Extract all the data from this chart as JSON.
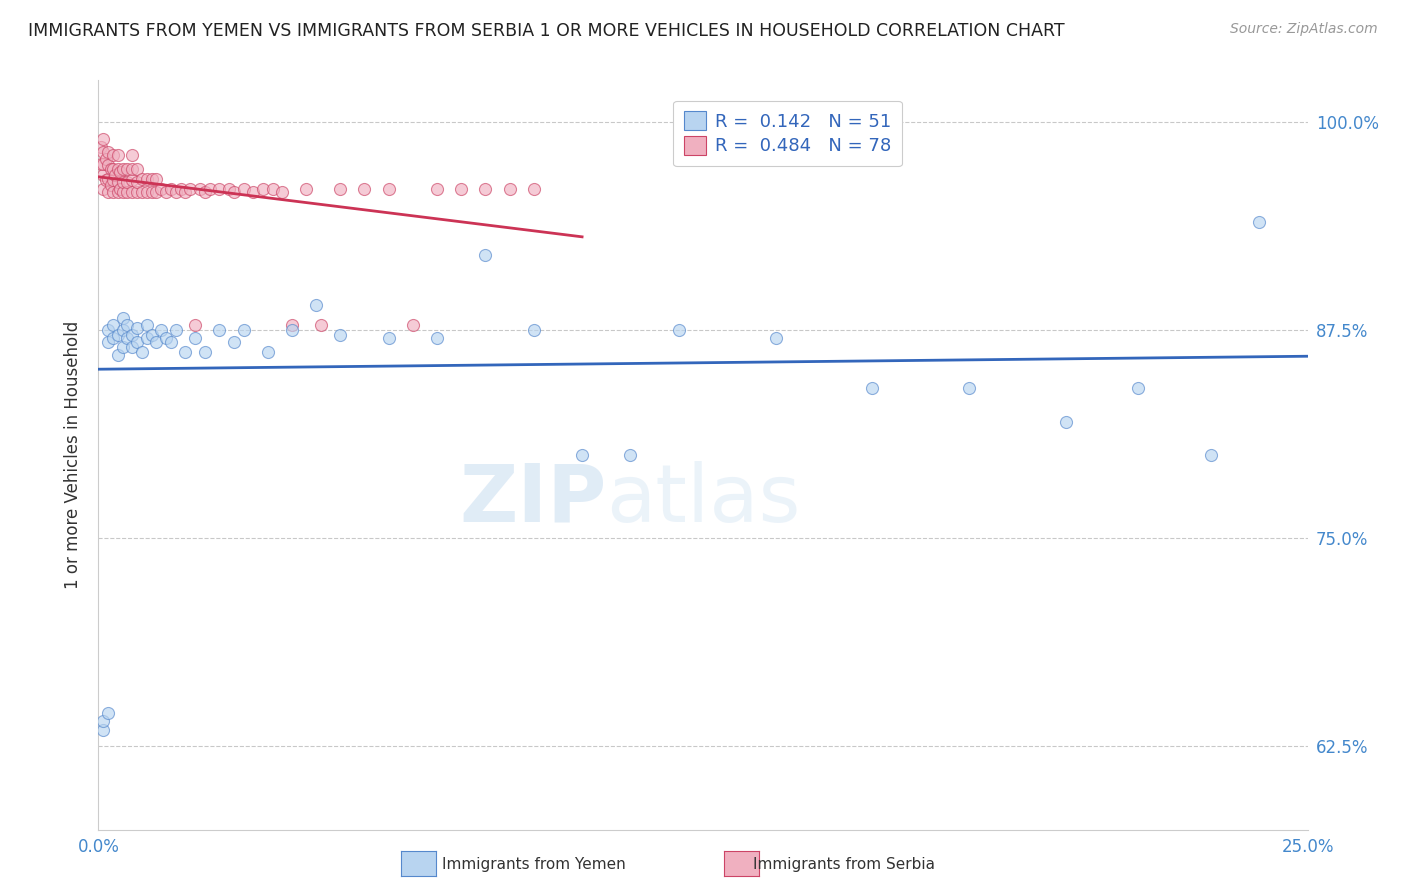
{
  "title": "IMMIGRANTS FROM YEMEN VS IMMIGRANTS FROM SERBIA 1 OR MORE VEHICLES IN HOUSEHOLD CORRELATION CHART",
  "source": "Source: ZipAtlas.com",
  "ylabel": "1 or more Vehicles in Household",
  "xlim": [
    0.0,
    0.25
  ],
  "ylim": [
    0.575,
    1.025
  ],
  "ytick_positions": [
    0.625,
    0.75,
    0.875,
    1.0
  ],
  "ytick_labels": [
    "62.5%",
    "75.0%",
    "87.5%",
    "100.0%"
  ],
  "xtick_positions": [
    0.0,
    0.05,
    0.1,
    0.15,
    0.2,
    0.25
  ],
  "xtick_labels": [
    "0.0%",
    "",
    "",
    "",
    "",
    "25.0%"
  ],
  "color_yemen_fill": "#b8d4f0",
  "color_yemen_edge": "#5588cc",
  "color_serbia_fill": "#f0b0c0",
  "color_serbia_edge": "#cc4466",
  "color_line_yemen": "#3366bb",
  "color_line_serbia": "#cc3355",
  "scatter_alpha": 0.65,
  "scatter_size": 75,
  "watermark_zip": "ZIP",
  "watermark_atlas": "atlas",
  "background_color": "#ffffff",
  "legend_label1": "R =  0.142   N = 51",
  "legend_label2": "R =  0.484   N = 78",
  "bottom_label_yemen": "Immigrants from Yemen",
  "bottom_label_serbia": "Immigrants from Serbia",
  "yemen_x": [
    0.001,
    0.001,
    0.002,
    0.002,
    0.002,
    0.003,
    0.003,
    0.004,
    0.004,
    0.005,
    0.005,
    0.005,
    0.006,
    0.006,
    0.007,
    0.007,
    0.008,
    0.008,
    0.009,
    0.01,
    0.01,
    0.011,
    0.012,
    0.013,
    0.014,
    0.015,
    0.016,
    0.018,
    0.02,
    0.022,
    0.025,
    0.028,
    0.03,
    0.035,
    0.04,
    0.045,
    0.05,
    0.06,
    0.07,
    0.08,
    0.09,
    0.1,
    0.11,
    0.12,
    0.14,
    0.16,
    0.18,
    0.2,
    0.215,
    0.23,
    0.24
  ],
  "yemen_y": [
    0.635,
    0.64,
    0.645,
    0.868,
    0.875,
    0.87,
    0.878,
    0.86,
    0.872,
    0.865,
    0.875,
    0.882,
    0.87,
    0.878,
    0.865,
    0.872,
    0.868,
    0.876,
    0.862,
    0.87,
    0.878,
    0.872,
    0.868,
    0.875,
    0.87,
    0.868,
    0.875,
    0.862,
    0.87,
    0.862,
    0.875,
    0.868,
    0.875,
    0.862,
    0.875,
    0.89,
    0.872,
    0.87,
    0.87,
    0.92,
    0.875,
    0.8,
    0.8,
    0.875,
    0.87,
    0.84,
    0.84,
    0.82,
    0.84,
    0.8,
    0.94
  ],
  "serbia_x": [
    0.0005,
    0.0005,
    0.001,
    0.001,
    0.001,
    0.001,
    0.001,
    0.0015,
    0.0015,
    0.002,
    0.002,
    0.002,
    0.002,
    0.0025,
    0.0025,
    0.003,
    0.003,
    0.003,
    0.003,
    0.0035,
    0.004,
    0.004,
    0.004,
    0.004,
    0.0045,
    0.0045,
    0.005,
    0.005,
    0.005,
    0.006,
    0.006,
    0.006,
    0.007,
    0.007,
    0.007,
    0.007,
    0.008,
    0.008,
    0.008,
    0.009,
    0.009,
    0.01,
    0.01,
    0.011,
    0.011,
    0.012,
    0.012,
    0.013,
    0.014,
    0.015,
    0.016,
    0.017,
    0.018,
    0.019,
    0.02,
    0.021,
    0.022,
    0.023,
    0.025,
    0.027,
    0.028,
    0.03,
    0.032,
    0.034,
    0.036,
    0.038,
    0.04,
    0.043,
    0.046,
    0.05,
    0.055,
    0.06,
    0.065,
    0.07,
    0.075,
    0.08,
    0.085,
    0.09
  ],
  "serbia_y": [
    0.975,
    0.985,
    0.96,
    0.968,
    0.975,
    0.982,
    0.99,
    0.965,
    0.978,
    0.958,
    0.966,
    0.974,
    0.982,
    0.962,
    0.972,
    0.958,
    0.965,
    0.972,
    0.98,
    0.968,
    0.958,
    0.964,
    0.972,
    0.98,
    0.96,
    0.97,
    0.958,
    0.964,
    0.972,
    0.958,
    0.964,
    0.972,
    0.958,
    0.965,
    0.972,
    0.98,
    0.958,
    0.964,
    0.972,
    0.958,
    0.966,
    0.958,
    0.966,
    0.958,
    0.966,
    0.958,
    0.966,
    0.96,
    0.958,
    0.96,
    0.958,
    0.96,
    0.958,
    0.96,
    0.878,
    0.96,
    0.958,
    0.96,
    0.96,
    0.96,
    0.958,
    0.96,
    0.958,
    0.96,
    0.96,
    0.958,
    0.878,
    0.96,
    0.878,
    0.96,
    0.96,
    0.96,
    0.878,
    0.96,
    0.96,
    0.96,
    0.96,
    0.96
  ]
}
